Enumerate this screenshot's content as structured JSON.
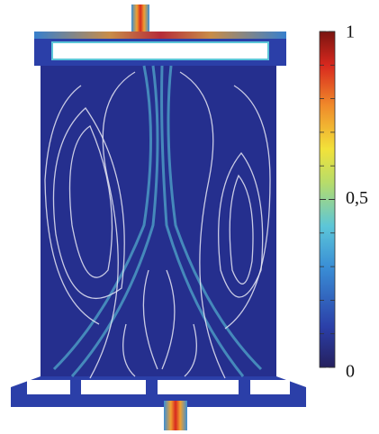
{
  "colorbar": {
    "lim": [
      0,
      1
    ],
    "ticks": [
      0,
      {
        "value": 0.5,
        "label": "0,5"
      },
      1
    ]
  }
}
